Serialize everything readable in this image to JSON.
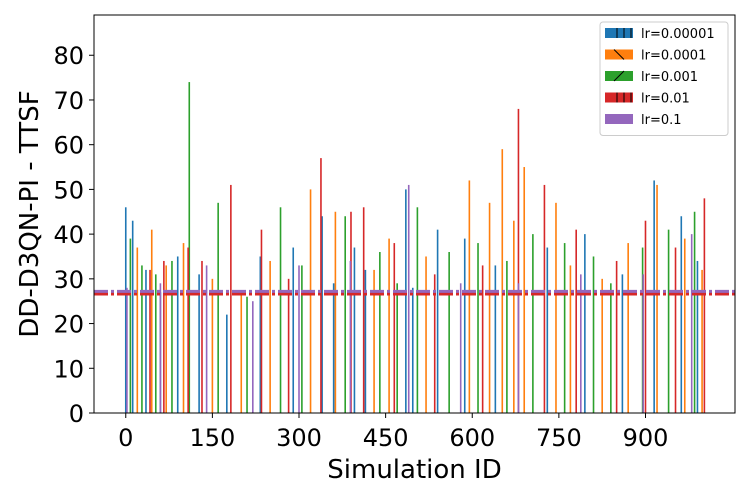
{
  "chart_data": {
    "type": "bar",
    "title": "",
    "xlabel": "Simulation ID",
    "ylabel": "DD-D3QN-PI - TTSF",
    "xlim": [
      -55,
      1055
    ],
    "ylim": [
      0,
      89
    ],
    "x_ticks": [
      0,
      150,
      300,
      450,
      600,
      750,
      900
    ],
    "y_ticks": [
      0,
      10,
      20,
      30,
      40,
      50,
      60,
      70,
      80
    ],
    "grid": false,
    "legend_position": "upper right",
    "series": [
      {
        "name": "lr=0.00001",
        "color": "#1f77b4",
        "hatch": "|",
        "mean": 26.9,
        "points": [
          [
            0,
            46
          ],
          [
            12,
            43
          ],
          [
            35,
            32
          ],
          [
            60,
            27
          ],
          [
            90,
            35
          ],
          [
            127,
            31
          ],
          [
            175,
            22
          ],
          [
            233,
            35
          ],
          [
            290,
            37
          ],
          [
            340,
            44
          ],
          [
            360,
            29
          ],
          [
            396,
            37
          ],
          [
            415,
            32
          ],
          [
            485,
            50
          ],
          [
            497,
            28
          ],
          [
            540,
            41
          ],
          [
            587,
            39
          ],
          [
            640,
            33
          ],
          [
            730,
            37
          ],
          [
            795,
            40
          ],
          [
            860,
            31
          ],
          [
            915,
            52
          ],
          [
            962,
            44
          ],
          [
            990,
            34
          ]
        ]
      },
      {
        "name": "lr=0.0001",
        "color": "#ff7f0e",
        "hatch": "\\",
        "mean": 26.6,
        "points": [
          [
            20,
            37
          ],
          [
            45,
            41
          ],
          [
            70,
            33
          ],
          [
            100,
            38
          ],
          [
            150,
            30
          ],
          [
            200,
            27
          ],
          [
            250,
            34
          ],
          [
            320,
            50
          ],
          [
            363,
            45
          ],
          [
            430,
            32
          ],
          [
            456,
            39
          ],
          [
            520,
            35
          ],
          [
            595,
            52
          ],
          [
            630,
            47
          ],
          [
            652,
            59
          ],
          [
            672,
            43
          ],
          [
            690,
            55
          ],
          [
            745,
            47
          ],
          [
            770,
            33
          ],
          [
            825,
            30
          ],
          [
            870,
            38
          ],
          [
            920,
            51
          ],
          [
            968,
            39
          ],
          [
            998,
            32
          ]
        ]
      },
      {
        "name": "lr=0.001",
        "color": "#2ca02c",
        "hatch": "/",
        "mean": 26.7,
        "points": [
          [
            8,
            39
          ],
          [
            28,
            33
          ],
          [
            52,
            31
          ],
          [
            80,
            34
          ],
          [
            110,
            74
          ],
          [
            160,
            47
          ],
          [
            210,
            26
          ],
          [
            268,
            46
          ],
          [
            305,
            33
          ],
          [
            380,
            44
          ],
          [
            440,
            36
          ],
          [
            470,
            29
          ],
          [
            505,
            46
          ],
          [
            560,
            36
          ],
          [
            610,
            38
          ],
          [
            660,
            34
          ],
          [
            705,
            40
          ],
          [
            760,
            38
          ],
          [
            810,
            35
          ],
          [
            840,
            29
          ],
          [
            895,
            37
          ],
          [
            940,
            41
          ],
          [
            985,
            45
          ]
        ]
      },
      {
        "name": "lr=0.01",
        "color": "#d62728",
        "hatch": "|",
        "mean": 26.6,
        "points": [
          [
            42,
            32
          ],
          [
            66,
            34
          ],
          [
            108,
            37
          ],
          [
            132,
            34
          ],
          [
            182,
            51
          ],
          [
            235,
            41
          ],
          [
            282,
            30
          ],
          [
            338,
            57
          ],
          [
            390,
            45
          ],
          [
            412,
            46
          ],
          [
            465,
            38
          ],
          [
            535,
            31
          ],
          [
            618,
            33
          ],
          [
            680,
            68
          ],
          [
            725,
            51
          ],
          [
            780,
            41
          ],
          [
            850,
            34
          ],
          [
            900,
            43
          ],
          [
            952,
            37
          ],
          [
            1002,
            48
          ]
        ]
      },
      {
        "name": "lr=0.1",
        "color": "#9467bd",
        "hatch": "",
        "mean": 27.2,
        "points": [
          [
            2,
            28
          ],
          [
            60,
            29
          ],
          [
            140,
            33
          ],
          [
            220,
            25
          ],
          [
            300,
            33
          ],
          [
            389,
            34
          ],
          [
            490,
            51
          ],
          [
            580,
            29
          ],
          [
            680,
            29
          ],
          [
            788,
            31
          ],
          [
            896,
            31
          ],
          [
            980,
            40
          ]
        ]
      }
    ]
  }
}
